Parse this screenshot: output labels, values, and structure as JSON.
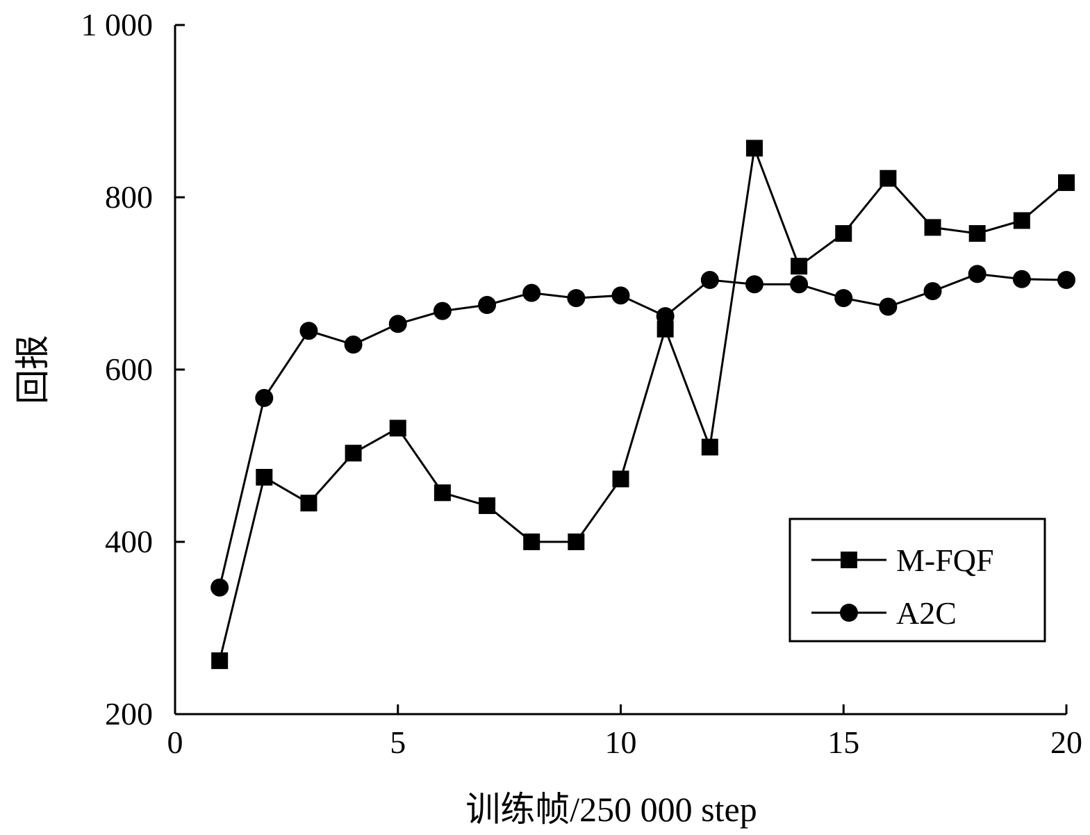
{
  "chart_data": {
    "type": "line",
    "xlabel": "训练帧/250 000 step",
    "ylabel": "回报",
    "xlim": [
      0,
      20
    ],
    "ylim": [
      200,
      1000
    ],
    "xticks": [
      0,
      5,
      10,
      15,
      20
    ],
    "xtick_labels": [
      "0",
      "5",
      "10",
      "15",
      "20"
    ],
    "yticks": [
      200,
      400,
      600,
      800,
      1000
    ],
    "ytick_labels": [
      "200",
      "400",
      "600",
      "800",
      "1 000"
    ],
    "grid": false,
    "legend_position": "bottom-right",
    "x": [
      1,
      2,
      3,
      4,
      5,
      6,
      7,
      8,
      9,
      10,
      11,
      12,
      13,
      14,
      15,
      16,
      17,
      18,
      19,
      20
    ],
    "series": [
      {
        "name": "M-FQF",
        "marker": "square",
        "color": "#000000",
        "values": [
          262,
          475,
          445,
          503,
          532,
          457,
          442,
          400,
          400,
          473,
          647,
          510,
          857,
          720,
          758,
          822,
          765,
          758,
          773,
          817
        ]
      },
      {
        "name": "A2C",
        "marker": "circle",
        "color": "#000000",
        "values": [
          347,
          567,
          645,
          629,
          653,
          668,
          675,
          689,
          683,
          686,
          662,
          704,
          699,
          699,
          683,
          673,
          691,
          711,
          705,
          704
        ]
      }
    ]
  }
}
